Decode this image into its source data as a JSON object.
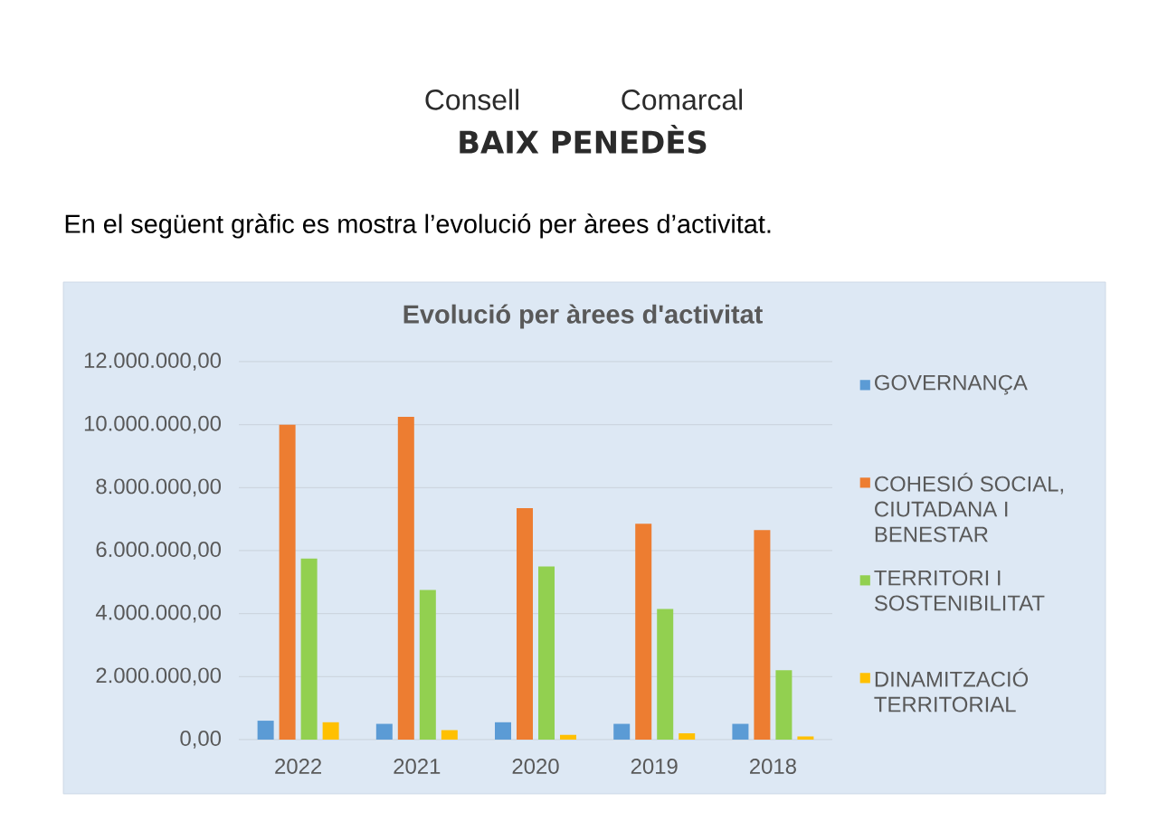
{
  "chart_data": {
    "type": "bar",
    "title": "Evolució per àrees d'activitat",
    "categories": [
      "2022",
      "2021",
      "2020",
      "2019",
      "2018"
    ],
    "series": [
      {
        "name": "GOVERNANÇA",
        "color": "#5b9bd5",
        "values": [
          600000,
          500000,
          550000,
          500000,
          500000
        ]
      },
      {
        "name": "COHESIÓ SOCIAL, CIUTADANA I BENESTAR",
        "color": "#ed7d31",
        "values": [
          10000000,
          10250000,
          7350000,
          6850000,
          6650000
        ]
      },
      {
        "name": "TERRITORI I SOSTENIBILITAT",
        "color": "#92d050",
        "values": [
          5750000,
          4750000,
          5500000,
          4150000,
          2200000
        ]
      },
      {
        "name": "DINAMITZACIÓ TERRITORIAL",
        "color": "#ffc000",
        "values": [
          550000,
          300000,
          150000,
          200000,
          100000
        ]
      }
    ],
    "ylim": [
      0,
      12000000
    ],
    "yticks": [
      {
        "value": 0,
        "label": "0,00"
      },
      {
        "value": 2000000,
        "label": "2.000.000,00"
      },
      {
        "value": 4000000,
        "label": "4.000.000,00"
      },
      {
        "value": 6000000,
        "label": "6.000.000,00"
      },
      {
        "value": 8000000,
        "label": "8.000.000,00"
      },
      {
        "value": 10000000,
        "label": "10.000.000,00"
      },
      {
        "value": 12000000,
        "label": "12.000.000,00"
      }
    ],
    "grid": "y",
    "legend": "right",
    "annotations": [
      "Consell",
      "Comarcal",
      "BAIX PENEDÈS",
      "En el següent gràfic es mostra l’evolució per àrees d’activitat."
    ]
  }
}
